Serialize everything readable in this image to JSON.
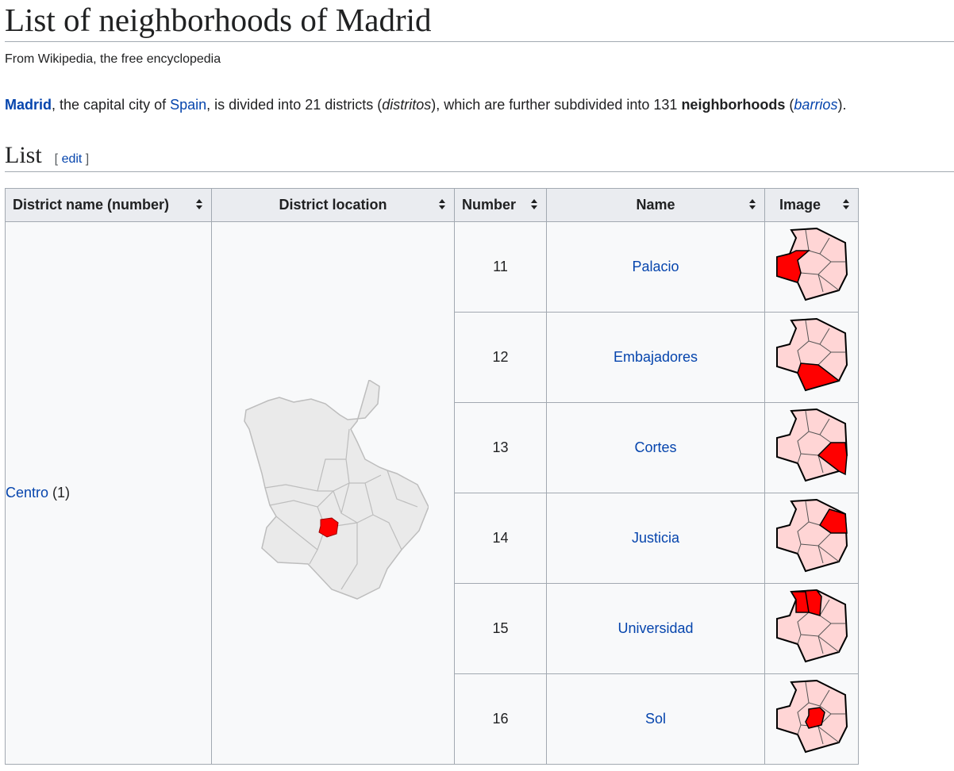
{
  "page": {
    "title": "List of neighborhoods of Madrid",
    "tagline": "From Wikipedia, the free encyclopedia"
  },
  "intro": {
    "madrid": "Madrid",
    "t1": ", the capital city of ",
    "spain": "Spain",
    "t2": ", is divided into 21 districts (",
    "distritos": "distritos",
    "t3": "), which are further subdivided into 131 ",
    "neighborhoods": "neighborhoods",
    "t4": " (",
    "barrios": "barrios",
    "t5": ")."
  },
  "section": {
    "heading": "List",
    "edit_open": "[ ",
    "edit_label": "edit",
    "edit_close": " ]"
  },
  "table": {
    "headers": {
      "district": "District name (number)",
      "location": "District location",
      "number": "Number",
      "name": "Name",
      "image": "Image"
    },
    "district": {
      "name": "Centro",
      "number": " (1)"
    },
    "rows": [
      {
        "number": "11",
        "name": "Palacio"
      },
      {
        "number": "12",
        "name": "Embajadores"
      },
      {
        "number": "13",
        "name": "Cortes"
      },
      {
        "number": "14",
        "name": "Justicia"
      },
      {
        "number": "15",
        "name": "Universidad"
      },
      {
        "number": "16",
        "name": "Sol"
      }
    ]
  },
  "colors": {
    "link": "#0645ad",
    "map_fill": "#eaeaea",
    "highlight": "#ff0000",
    "light_red": "#ffd5d5"
  }
}
